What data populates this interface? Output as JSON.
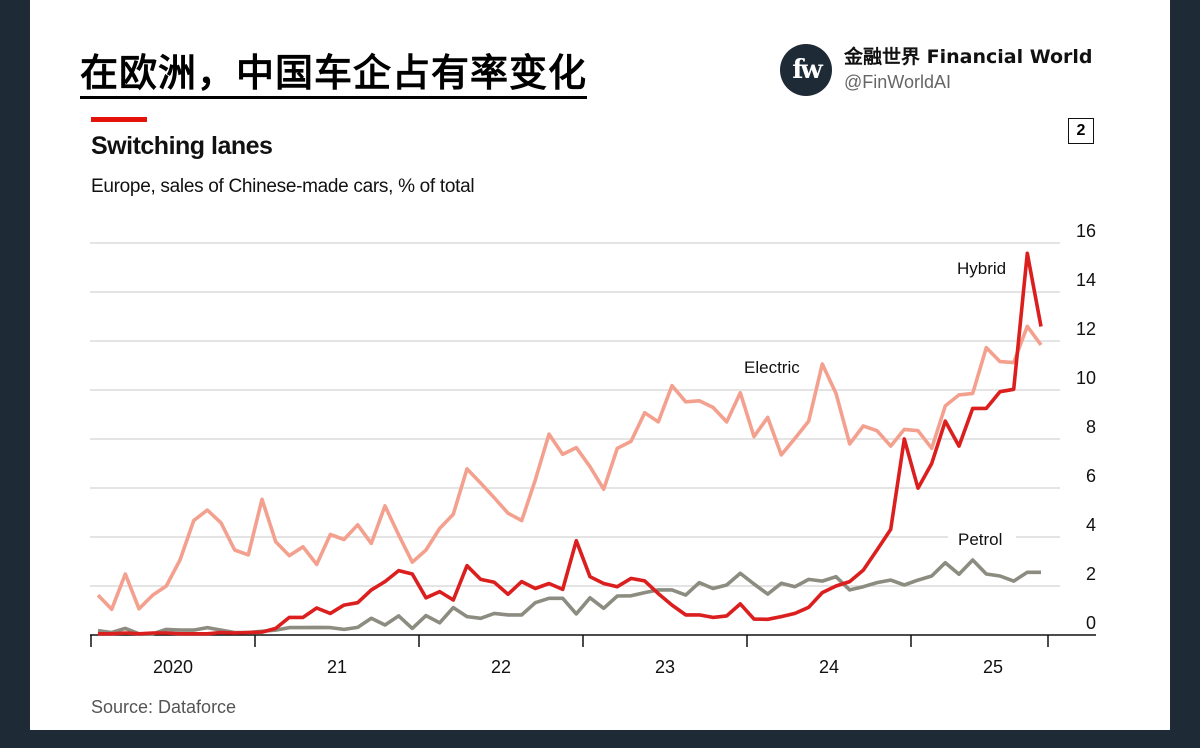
{
  "header": {
    "cn_title": "在欧洲，中国车企占有率变化",
    "brand_name": "金融世界 Financial World",
    "brand_handle": "@FinWorldAI",
    "logo_text": "fw",
    "page_number": "2"
  },
  "footer": {
    "source": "Source: Dataforce"
  },
  "colors": {
    "electric": "#f4a08f",
    "hybrid": "#db1f1f",
    "petrol": "#8c8c80",
    "accent": "#e3120b"
  },
  "chart_data": {
    "type": "line",
    "title": "Switching lanes",
    "subtitle": "Europe, sales of Chinese-made cars, % of total",
    "xlabel": "",
    "ylabel": "",
    "ylim": [
      0,
      16
    ],
    "yticks": [
      "0",
      "2",
      "4",
      "6",
      "8",
      "10",
      "12",
      "14",
      "16"
    ],
    "xtick_labels": [
      "2020",
      "21",
      "22",
      "23",
      "24",
      "25"
    ],
    "x_start": "2020-01",
    "x_frequency": "monthly",
    "grid": true,
    "series": [
      {
        "name": "Electric",
        "values": [
          1.63,
          1.05,
          2.49,
          1.07,
          1.63,
          2.0,
          3.06,
          4.67,
          5.1,
          4.58,
          3.47,
          3.27,
          5.54,
          3.81,
          3.24,
          3.6,
          2.88,
          4.1,
          3.9,
          4.5,
          3.74,
          5.27,
          4.08,
          2.97,
          3.47,
          4.35,
          4.93,
          6.78,
          6.2,
          5.6,
          4.97,
          4.67,
          6.33,
          8.2,
          7.37,
          7.65,
          6.87,
          5.95,
          7.62,
          7.9,
          9.07,
          8.7,
          10.18,
          9.52,
          9.56,
          9.29,
          8.7,
          9.89,
          8.1,
          8.88,
          7.35,
          8.03,
          8.73,
          11.06,
          9.86,
          7.8,
          8.53,
          8.34,
          7.71,
          8.39,
          8.34,
          7.62,
          9.35,
          9.8,
          9.86,
          11.73,
          11.16,
          11.12,
          12.6,
          11.84
        ]
      },
      {
        "name": "Hybrid",
        "values": [
          0.05,
          0.05,
          0.08,
          0.05,
          0.08,
          0.08,
          0.05,
          0.05,
          0.05,
          0.1,
          0.08,
          0.1,
          0.12,
          0.27,
          0.72,
          0.72,
          1.1,
          0.88,
          1.22,
          1.32,
          1.84,
          2.18,
          2.63,
          2.49,
          1.52,
          1.77,
          1.43,
          2.83,
          2.27,
          2.15,
          1.66,
          2.18,
          1.9,
          2.1,
          1.86,
          3.85,
          2.38,
          2.1,
          1.97,
          2.31,
          2.21,
          1.69,
          1.22,
          0.82,
          0.82,
          0.72,
          0.78,
          1.27,
          0.65,
          0.64,
          0.75,
          0.88,
          1.13,
          1.73,
          2.0,
          2.18,
          2.65,
          3.47,
          4.31,
          8.0,
          5.99,
          7.0,
          8.73,
          7.71,
          9.25,
          9.25,
          9.93,
          10.03,
          15.58,
          12.59
        ]
      },
      {
        "name": "Petrol",
        "values": [
          0.18,
          0.1,
          0.27,
          0.05,
          0.05,
          0.23,
          0.2,
          0.2,
          0.3,
          0.2,
          0.1,
          0.1,
          0.15,
          0.2,
          0.3,
          0.3,
          0.31,
          0.3,
          0.23,
          0.31,
          0.68,
          0.41,
          0.78,
          0.27,
          0.79,
          0.5,
          1.12,
          0.75,
          0.68,
          0.88,
          0.82,
          0.82,
          1.32,
          1.5,
          1.5,
          0.86,
          1.52,
          1.09,
          1.59,
          1.6,
          1.73,
          1.84,
          1.84,
          1.63,
          2.14,
          1.9,
          2.04,
          2.52,
          2.08,
          1.67,
          2.11,
          1.97,
          2.27,
          2.2,
          2.38,
          1.84,
          1.97,
          2.14,
          2.24,
          2.04,
          2.24,
          2.41,
          2.95,
          2.48,
          3.06,
          2.49,
          2.41,
          2.2,
          2.56,
          2.56
        ]
      }
    ]
  }
}
